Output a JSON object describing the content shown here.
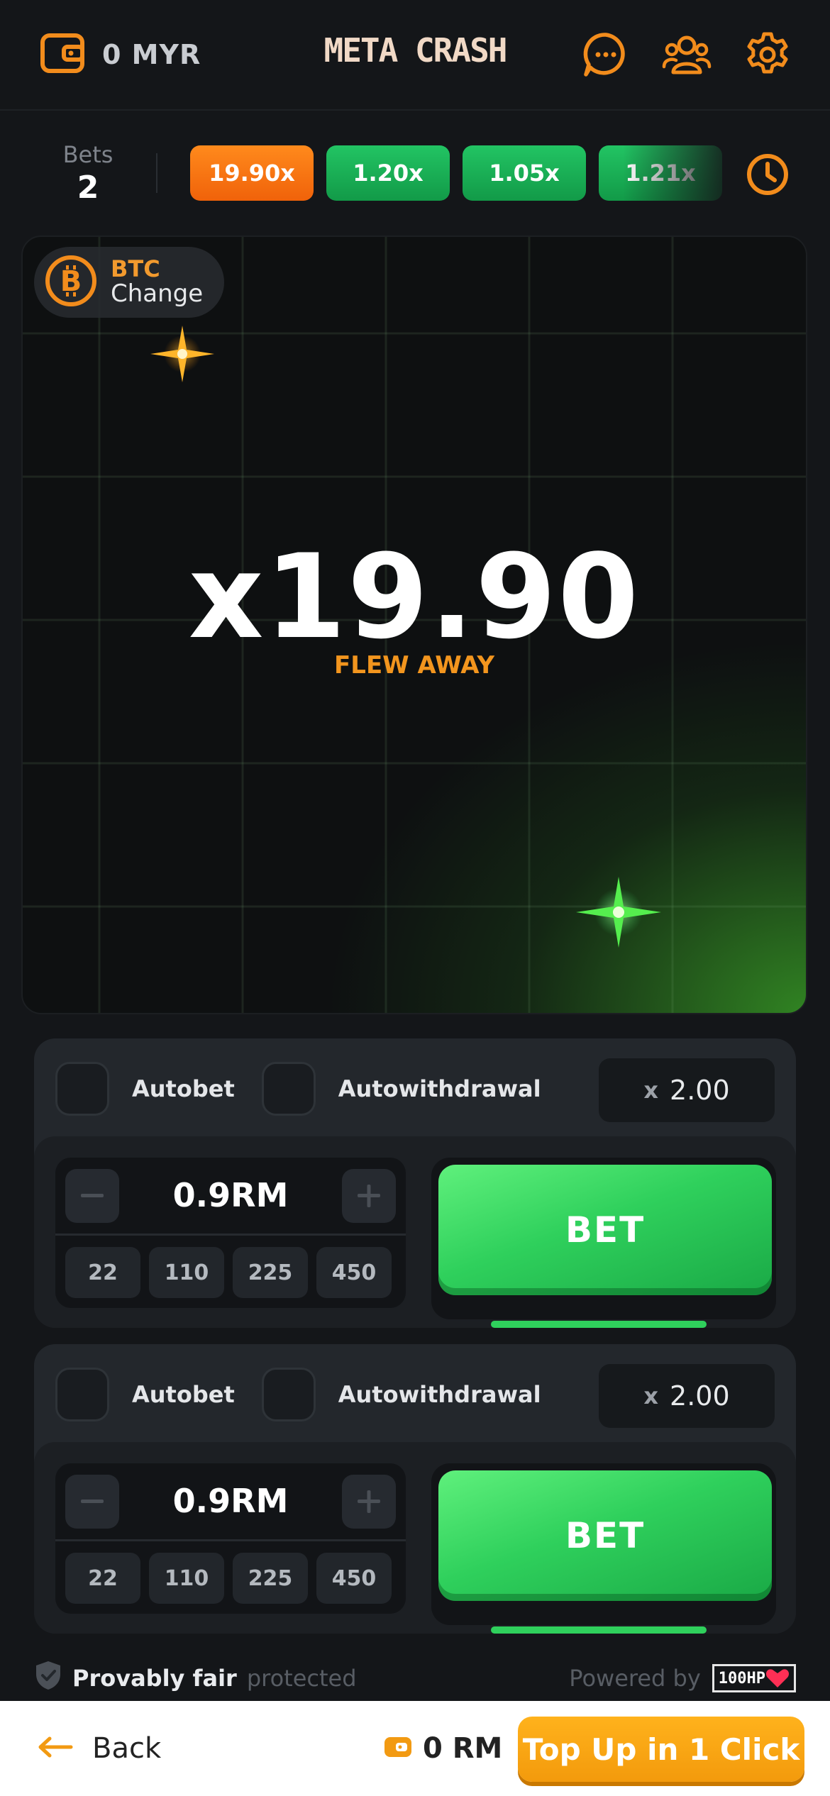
{
  "header": {
    "balance": "0 MYR",
    "logo": "META CRASH",
    "icons": [
      "wallet-icon",
      "chat-icon",
      "users-icon",
      "settings-icon"
    ]
  },
  "history": {
    "bets_label": "Bets",
    "bets_count": "2",
    "multipliers": [
      {
        "value": "19.90x",
        "color": "#f57515"
      },
      {
        "value": "1.20x",
        "color": "#1bb455"
      },
      {
        "value": "1.05x",
        "color": "#1bb455"
      },
      {
        "value": "1.21x",
        "color": "#1bb455"
      }
    ]
  },
  "game": {
    "currency_code": "BTC",
    "currency_action": "Change",
    "multiplier": "x19.90",
    "status": "FLEW AWAY"
  },
  "panels": [
    {
      "autobet_label": "Autobet",
      "autowithdrawal_label": "Autowithdrawal",
      "cashout_prefix": "x",
      "cashout_value": "2.00",
      "amount": "0.9RM",
      "quick_amounts": [
        "22",
        "110",
        "225",
        "450"
      ],
      "bet_label": "BET"
    },
    {
      "autobet_label": "Autobet",
      "autowithdrawal_label": "Autowithdrawal",
      "cashout_prefix": "x",
      "cashout_value": "2.00",
      "amount": "0.9RM",
      "quick_amounts": [
        "22",
        "110",
        "225",
        "450"
      ],
      "bet_label": "BET"
    }
  ],
  "footer": {
    "fair_label": "Provably fair",
    "fair_suffix": "protected",
    "powered_by": "Powered by",
    "brand": "100HP"
  },
  "bottom_bar": {
    "back_label": "Back",
    "balance": "0 RM",
    "topup_label": "Top Up in 1 Click"
  },
  "colors": {
    "accent_orange": "#f2951e",
    "accent_green": "#2fd05c",
    "background": "#141619",
    "panel": "#23272c"
  }
}
